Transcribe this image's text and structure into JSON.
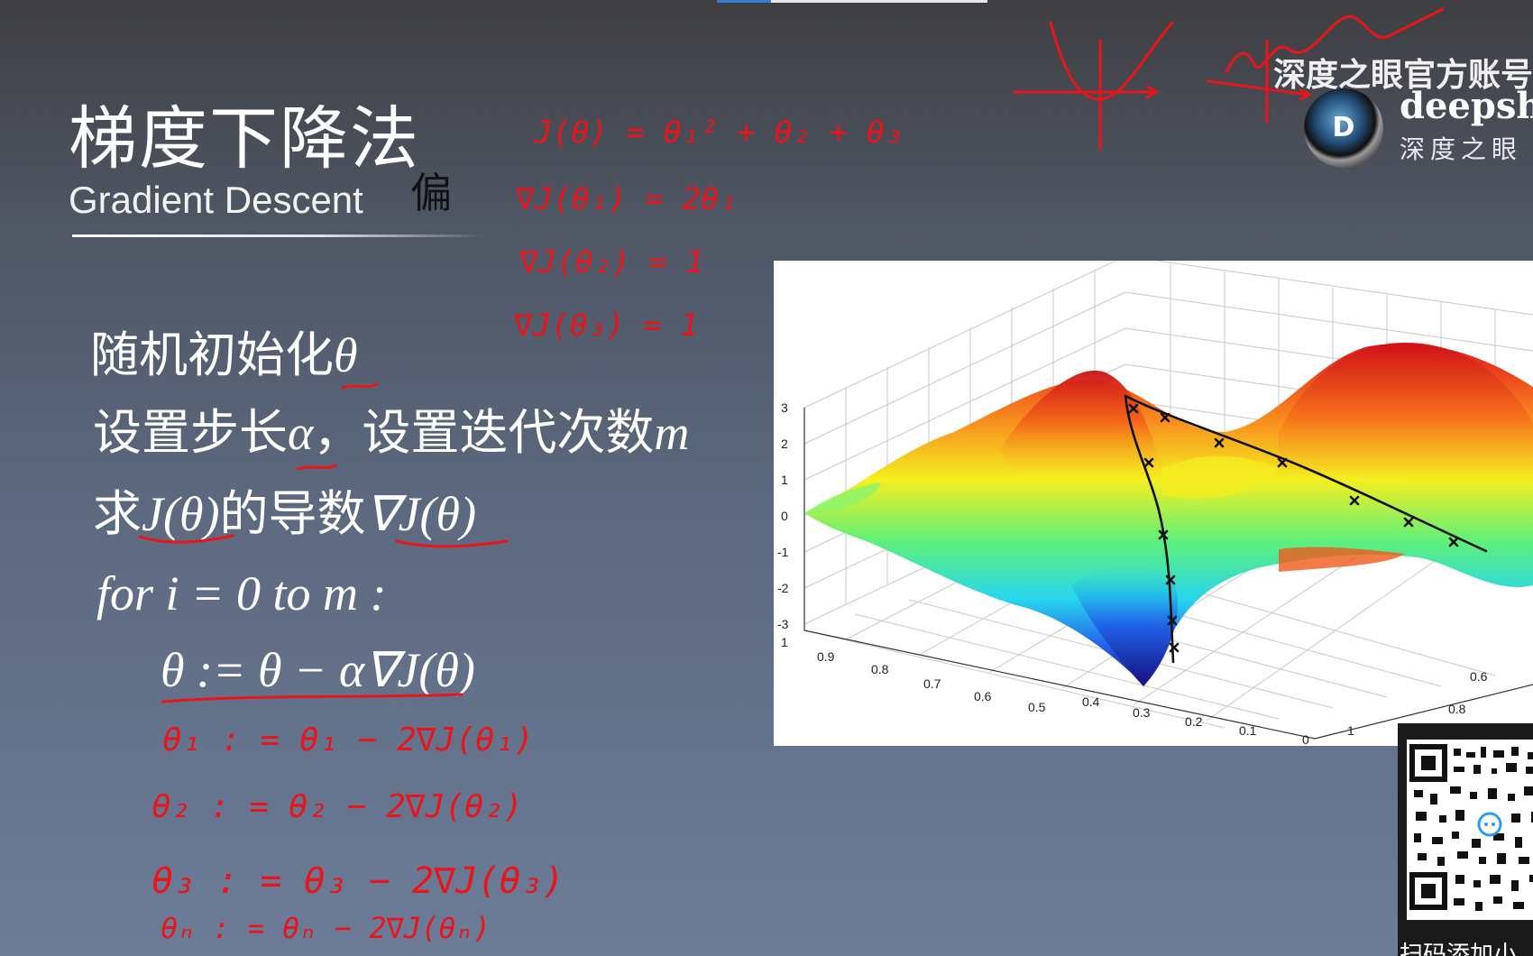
{
  "slide": {
    "title": "梯度下降法",
    "subtitle": "Gradient Descent",
    "steps": {
      "s1": "随机初始化",
      "s1_var": "θ",
      "s2a": "设置步长",
      "s2_alpha": "α",
      "s2b": "，设置迭代次数",
      "s2_m": "m",
      "s3a": "求",
      "s3_J": "J(θ)",
      "s3b": "的导数",
      "s3_grad": "∇J(θ)",
      "s4": "for i = 0 to m :",
      "s5": "θ := θ − α∇J(θ)"
    }
  },
  "annotations": {
    "formula_J": "J(θ) = θ₁² + θ₂ + θ₃",
    "grad1": "∇J(θ₁) = 2θ₁",
    "grad2": "∇J(θ₂) = 1",
    "grad3": "∇J(θ₃) = 1",
    "upd1": "θ₁ : = θ₁ − 2∇J(θ₁)",
    "upd2": "θ₂ : = θ₂ − 2∇J(θ₂)",
    "upd3": "θ₃ : = θ₃ − 2∇J(θ₃)",
    "updn": "θₙ : = θₙ − 2∇J(θₙ)",
    "note": "偏",
    "ink_color": "#e8151b"
  },
  "watermark": {
    "account": "深度之眼官方账号",
    "brand_en": "deepshar",
    "brand_cn": "深度之眼",
    "logo_letter": "D"
  },
  "plot": {
    "z_ticks": [
      "3",
      "2",
      "1",
      "0",
      "-1",
      "-2",
      "-3"
    ],
    "x_ticks": [
      "1",
      "0.9",
      "0.8",
      "0.7",
      "0.6",
      "0.5",
      "0.4",
      "0.3",
      "0.2",
      "0.1",
      "0"
    ],
    "y_ticks": [
      "1",
      "0.8",
      "0.6"
    ]
  },
  "qr": {
    "caption": "扫码添加小"
  }
}
